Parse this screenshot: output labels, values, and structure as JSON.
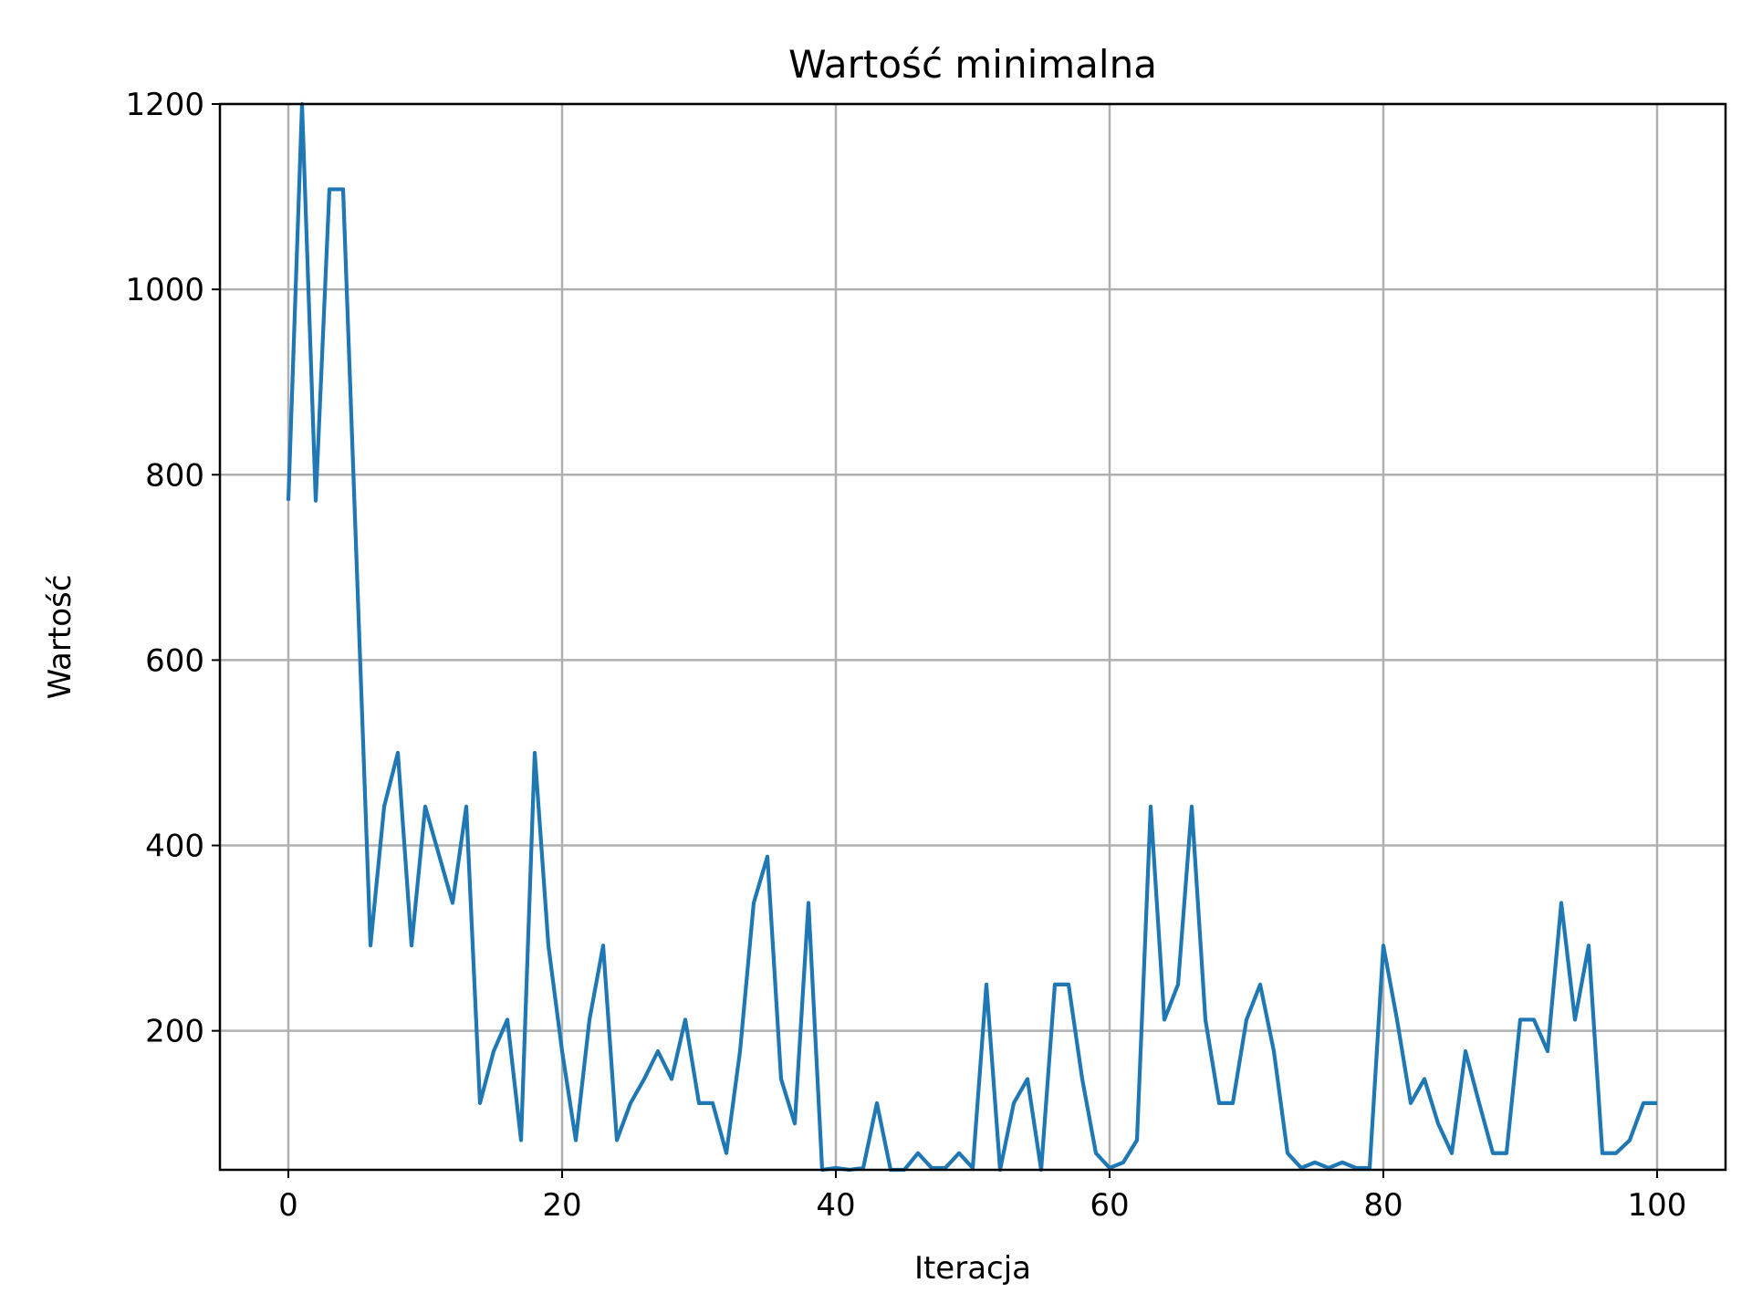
{
  "chart_data": {
    "type": "line",
    "title": "Wartość minimalna",
    "xlabel": "Iteracja",
    "ylabel": "Wartość",
    "xlim": [
      -5,
      105
    ],
    "ylim": [
      50,
      1200
    ],
    "grid": true,
    "x_ticks": [
      0,
      20,
      40,
      60,
      80,
      100
    ],
    "y_ticks": [
      200,
      400,
      600,
      800,
      1000,
      1200
    ],
    "series": [
      {
        "color": "#1f77b4",
        "x": [
          0,
          1,
          2,
          3,
          4,
          5,
          6,
          7,
          8,
          9,
          10,
          11,
          12,
          13,
          14,
          15,
          16,
          17,
          18,
          19,
          20,
          21,
          22,
          23,
          24,
          25,
          26,
          27,
          28,
          29,
          30,
          31,
          32,
          33,
          34,
          35,
          36,
          37,
          38,
          39,
          40,
          41,
          42,
          43,
          44,
          45,
          46,
          47,
          48,
          49,
          50,
          51,
          52,
          53,
          54,
          55,
          56,
          57,
          58,
          59,
          60,
          61,
          62,
          63,
          64,
          65,
          66,
          67,
          68,
          69,
          70,
          71,
          72,
          73,
          74,
          75,
          76,
          77,
          78,
          79,
          80,
          81,
          82,
          83,
          84,
          85,
          86,
          87,
          88,
          89,
          90,
          91,
          92,
          93,
          94,
          95,
          96,
          97,
          98,
          99,
          100
        ],
        "y": [
          772,
          1200,
          772,
          1108,
          1108,
          700,
          292,
          442,
          500,
          292,
          442,
          390,
          338,
          442,
          122,
          178,
          212,
          82,
          500,
          292,
          178,
          82,
          212,
          292,
          82,
          122,
          148,
          178,
          148,
          212,
          122,
          122,
          68,
          178,
          338,
          388,
          148,
          100,
          338,
          50,
          52,
          50,
          52,
          122,
          50,
          50,
          68,
          52,
          52,
          68,
          52,
          250,
          50,
          122,
          148,
          50,
          250,
          250,
          148,
          68,
          52,
          58,
          82,
          442,
          212,
          250,
          442,
          212,
          122,
          122,
          212,
          250,
          178,
          68,
          52,
          58,
          52,
          58,
          52,
          52,
          292,
          212,
          122,
          148,
          100,
          68,
          178,
          122,
          68,
          68,
          212,
          212,
          178,
          338,
          212,
          292,
          68,
          68,
          82,
          122,
          122
        ]
      }
    ]
  }
}
